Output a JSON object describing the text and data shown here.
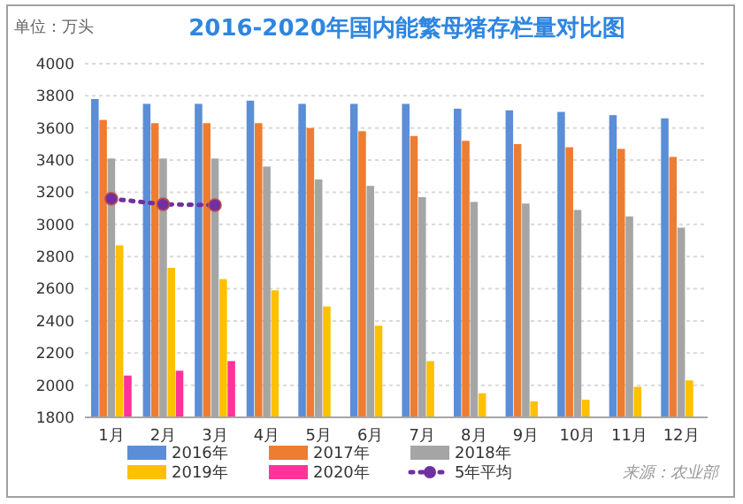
{
  "chart_data": {
    "type": "bar",
    "title": "2016-2020年国内能繁母猪存栏量对比图",
    "ylabel": "单位：万头",
    "categories": [
      "1月",
      "2月",
      "3月",
      "4月",
      "5月",
      "6月",
      "7月",
      "8月",
      "9月",
      "10月",
      "11月",
      "12月"
    ],
    "series": [
      {
        "name": "2016年",
        "color": "#5b8ed6",
        "values": [
          3780,
          3750,
          3750,
          3770,
          3750,
          3750,
          3750,
          3720,
          3710,
          3700,
          3680,
          3660
        ]
      },
      {
        "name": "2017年",
        "color": "#ed7d31",
        "values": [
          3650,
          3630,
          3630,
          3630,
          3600,
          3580,
          3550,
          3520,
          3500,
          3480,
          3470,
          3420
        ]
      },
      {
        "name": "2018年",
        "color": "#a5a5a5",
        "values": [
          3410,
          3410,
          3410,
          3360,
          3280,
          3240,
          3170,
          3140,
          3130,
          3090,
          3050,
          2980
        ]
      },
      {
        "name": "2019年",
        "color": "#ffc000",
        "values": [
          2870,
          2730,
          2660,
          2590,
          2490,
          2370,
          2150,
          1950,
          1900,
          1910,
          1990,
          2030
        ]
      },
      {
        "name": "2020年",
        "color": "#ff3399",
        "values": [
          2060,
          2090,
          2150,
          null,
          null,
          null,
          null,
          null,
          null,
          null,
          null,
          null
        ]
      },
      {
        "name": "5年平均",
        "type": "line",
        "color": "#7030a0",
        "line_style": "dotted",
        "marker": "circle",
        "values": [
          3160,
          3125,
          3120,
          null,
          null,
          null,
          null,
          null,
          null,
          null,
          null,
          null
        ]
      }
    ],
    "ylim": [
      1800,
      4000
    ],
    "yticks": [
      1800,
      2000,
      2200,
      2400,
      2600,
      2800,
      3000,
      3200,
      3400,
      3600,
      3800,
      4000
    ],
    "grid": "y",
    "legend": "bottom",
    "annotations": [
      "来源：农业部"
    ]
  }
}
